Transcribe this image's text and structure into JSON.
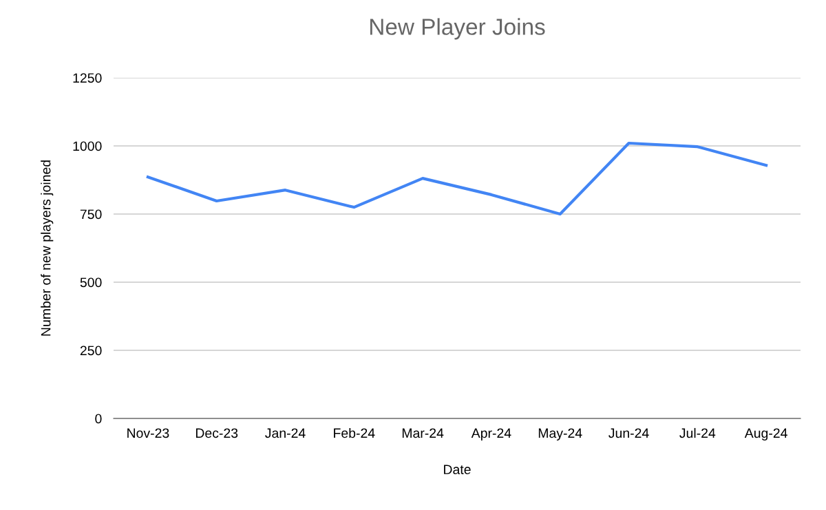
{
  "chart_data": {
    "type": "line",
    "title": "New Player Joins",
    "xlabel": "Date",
    "ylabel": "Number of new players joined",
    "categories": [
      "Nov-23",
      "Dec-23",
      "Jan-24",
      "Feb-24",
      "Mar-24",
      "Apr-24",
      "May-24",
      "Jun-24",
      "Jul-24",
      "Aug-24"
    ],
    "series": [
      {
        "color": "#4285f4",
        "values": [
          886,
          798,
          838,
          775,
          881,
          821,
          750,
          1010,
          997,
          929
        ]
      }
    ],
    "ylim": [
      0,
      1250
    ],
    "yticks": [
      0,
      250,
      500,
      750,
      1000,
      1250
    ],
    "grid": "y",
    "marker": "none",
    "line_style": "solid"
  }
}
